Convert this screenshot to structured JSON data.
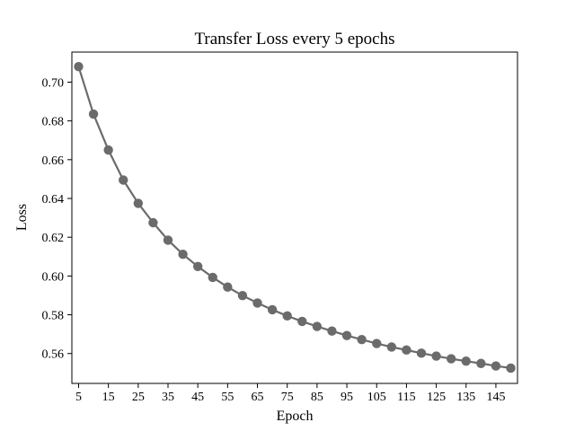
{
  "chart_data": {
    "type": "line",
    "title": "Transfer Loss every 5 epochs",
    "xlabel": "Epoch",
    "ylabel": "Loss",
    "xlim": [
      2.75,
      152.25
    ],
    "ylim": [
      0.5446,
      0.7155
    ],
    "x_ticks": [
      5,
      15,
      25,
      35,
      45,
      55,
      65,
      75,
      85,
      95,
      105,
      115,
      125,
      135,
      145
    ],
    "y_ticks": [
      0.56,
      0.58,
      0.6,
      0.62,
      0.64,
      0.66,
      0.68,
      0.7
    ],
    "y_tick_labels": [
      "0.56",
      "0.58",
      "0.60",
      "0.62",
      "0.64",
      "0.66",
      "0.68",
      "0.70"
    ],
    "grid": false,
    "line_color": "#6b6b6b",
    "series": [
      {
        "x": [
          5,
          10,
          15,
          20,
          25,
          30,
          35,
          40,
          45,
          50,
          55,
          60,
          65,
          70,
          75,
          80,
          85,
          90,
          95,
          100,
          105,
          110,
          115,
          120,
          125,
          130,
          135,
          140,
          145,
          150
        ],
        "values": [
          0.708,
          0.6835,
          0.665,
          0.6495,
          0.6375,
          0.6275,
          0.6185,
          0.6112,
          0.6049,
          0.5993,
          0.5943,
          0.5899,
          0.5861,
          0.5826,
          0.5794,
          0.5766,
          0.574,
          0.5716,
          0.5693,
          0.5672,
          0.5652,
          0.5634,
          0.5618,
          0.5602,
          0.5587,
          0.5573,
          0.5561,
          0.5549,
          0.5536,
          0.5525
        ]
      }
    ]
  }
}
